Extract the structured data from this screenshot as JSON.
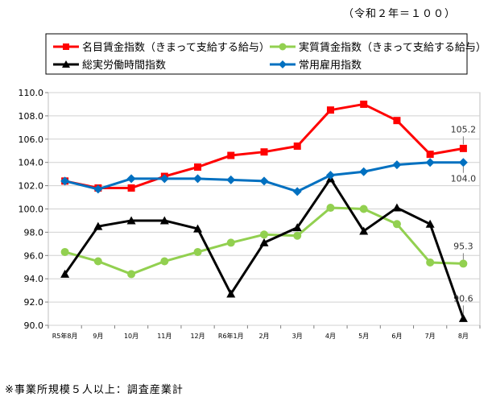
{
  "base_note": "（令和２年＝１００）",
  "footnote": "※事業所規模５人以上：調査産業計",
  "chart_data": {
    "type": "line",
    "categories": [
      "R5年8月",
      "9月",
      "10月",
      "11月",
      "12月",
      "R6年1月",
      "2月",
      "3月",
      "4月",
      "5月",
      "6月",
      "7月",
      "8月"
    ],
    "ylim": [
      90.0,
      110.0
    ],
    "yticks": [
      "90.0",
      "92.0",
      "94.0",
      "96.0",
      "98.0",
      "100.0",
      "102.0",
      "104.0",
      "106.0",
      "108.0",
      "110.0"
    ],
    "grid": true,
    "legend_position": "top",
    "series": [
      {
        "name": "名目賃金指数（きまって支給する給与）",
        "color": "#ff0000",
        "marker": "square",
        "values": [
          102.4,
          101.8,
          101.8,
          102.8,
          103.6,
          104.6,
          104.9,
          105.4,
          108.5,
          109.0,
          107.6,
          104.7,
          105.2
        ],
        "end_label": "105.2"
      },
      {
        "name": "実質賃金指数（きまって支給する給与）",
        "color": "#92d050",
        "marker": "circle",
        "values": [
          96.3,
          95.5,
          94.4,
          95.5,
          96.3,
          97.1,
          97.8,
          97.7,
          100.1,
          100.0,
          98.7,
          95.4,
          95.3
        ],
        "end_label": "95.3"
      },
      {
        "name": "総実労働時間指数",
        "color": "#000000",
        "marker": "triangle",
        "values": [
          94.4,
          98.5,
          99.0,
          99.0,
          98.3,
          92.7,
          97.1,
          98.4,
          102.6,
          98.1,
          100.1,
          98.7,
          90.6
        ],
        "end_label": "90.6"
      },
      {
        "name": "常用雇用指数",
        "color": "#0070c0",
        "marker": "diamond",
        "values": [
          102.4,
          101.7,
          102.6,
          102.6,
          102.6,
          102.5,
          102.4,
          101.5,
          102.9,
          103.2,
          103.8,
          104.0,
          104.0
        ],
        "end_label": "104.0"
      }
    ]
  }
}
